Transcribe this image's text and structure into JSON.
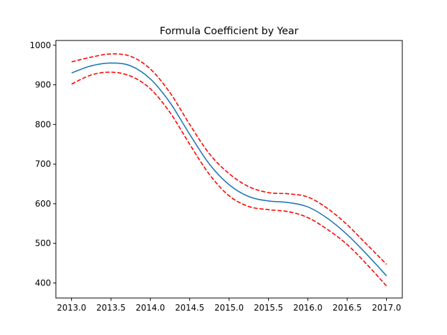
{
  "chart_data": {
    "type": "line",
    "title": "Formula Coefficient by Year",
    "xlabel": "",
    "ylabel": "",
    "xlim": [
      2012.8,
      2017.2
    ],
    "ylim": [
      362,
      1012
    ],
    "x_ticks": [
      2013.0,
      2013.5,
      2014.0,
      2014.5,
      2015.0,
      2015.5,
      2016.0,
      2016.5,
      2017.0
    ],
    "x_tick_labels": [
      "2013.0",
      "2013.5",
      "2014.0",
      "2014.5",
      "2015.0",
      "2015.5",
      "2016.0",
      "2016.5",
      "2017.0"
    ],
    "y_ticks": [
      400,
      500,
      600,
      700,
      800,
      900,
      1000
    ],
    "y_tick_labels": [
      "400",
      "500",
      "600",
      "700",
      "800",
      "900",
      "1000"
    ],
    "grid": false,
    "legend": "none",
    "series": [
      {
        "style": "solid",
        "color": "#1f77b4",
        "x": [
          2013.0,
          2013.25,
          2013.5,
          2013.75,
          2014.0,
          2014.25,
          2014.5,
          2014.75,
          2015.0,
          2015.25,
          2015.5,
          2015.75,
          2016.0,
          2016.25,
          2016.5,
          2016.75,
          2017.0
        ],
        "y": [
          930,
          948,
          955,
          948,
          915,
          855,
          775,
          700,
          648,
          618,
          607,
          603,
          592,
          563,
          522,
          472,
          418
        ]
      },
      {
        "style": "dashed",
        "color": "#ff0000",
        "x": [
          2013.0,
          2013.25,
          2013.5,
          2013.75,
          2014.0,
          2014.25,
          2014.5,
          2014.75,
          2015.0,
          2015.25,
          2015.5,
          2015.75,
          2016.0,
          2016.25,
          2016.5,
          2016.75,
          2017.0
        ],
        "y": [
          958,
          970,
          978,
          972,
          940,
          880,
          800,
          726,
          676,
          643,
          628,
          625,
          617,
          588,
          547,
          497,
          447
        ]
      },
      {
        "style": "dashed",
        "color": "#ff0000",
        "x": [
          2013.0,
          2013.25,
          2013.5,
          2013.75,
          2014.0,
          2014.25,
          2014.5,
          2014.75,
          2015.0,
          2015.25,
          2015.5,
          2015.75,
          2016.0,
          2016.25,
          2016.5,
          2016.75,
          2017.0
        ],
        "y": [
          902,
          925,
          932,
          922,
          890,
          830,
          750,
          674,
          620,
          593,
          585,
          580,
          565,
          535,
          497,
          447,
          392
        ]
      }
    ]
  }
}
